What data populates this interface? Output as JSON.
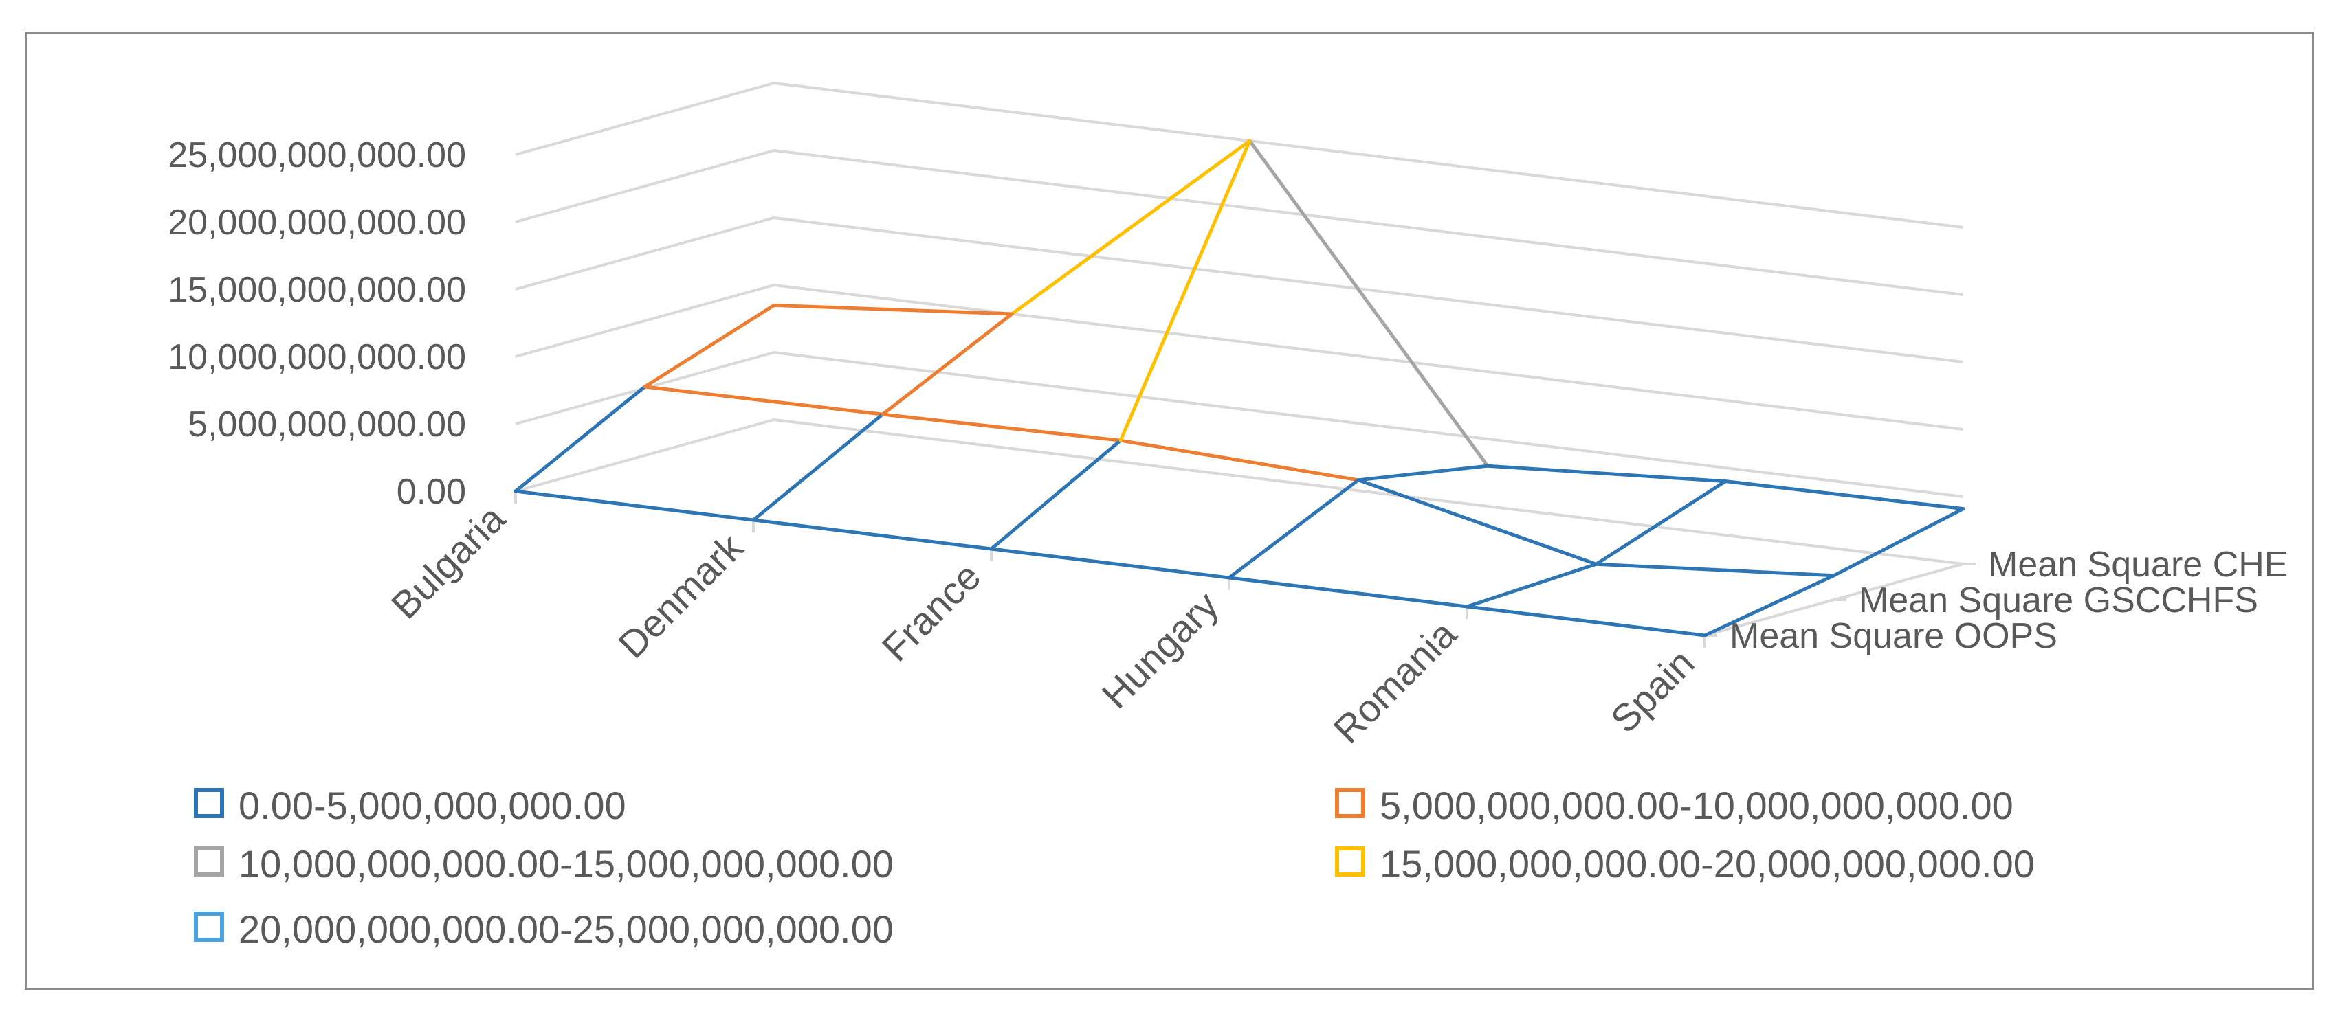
{
  "chart_data": {
    "type": "surface-wireframe-3d",
    "title": "",
    "categories": [
      "Bulgaria",
      "Denmark",
      "France",
      "Hungary",
      "Romania",
      "Spain"
    ],
    "series_axis": [
      "Mean Square OOPS",
      "Mean Square GSCCHFS",
      "Mean Square CHE"
    ],
    "series": [
      {
        "name": "Mean Square OOPS",
        "values": [
          0,
          0,
          0,
          0,
          0,
          0
        ]
      },
      {
        "name": "Mean Square GSCCHFS",
        "values": [
          5100000000,
          5200000000,
          5400000000,
          4600000000,
          500000000,
          1800000000
        ]
      },
      {
        "name": "Mean Square CHE",
        "values": [
          8500000000,
          10000000000,
          25000000000,
          3000000000,
          4000000000,
          4100000000
        ]
      }
    ],
    "y_ticks": [
      "0.00",
      "5,000,000,000.00",
      "10,000,000,000.00",
      "15,000,000,000.00",
      "20,000,000,000.00",
      "25,000,000,000.00"
    ],
    "ylim": [
      0,
      25000000000
    ],
    "legend": [
      {
        "label": "0.00-5,000,000,000.00",
        "color": "#2e75b6"
      },
      {
        "label": "5,000,000,000.00-10,000,000,000.00",
        "color": "#ed7d31"
      },
      {
        "label": "10,000,000,000.00-15,000,000,000.00",
        "color": "#a5a5a5"
      },
      {
        "label": "15,000,000,000.00-20,000,000,000.00",
        "color": "#ffc000"
      },
      {
        "label": "20,000,000,000.00-25,000,000,000.00",
        "color": "#4aa3df"
      }
    ],
    "legend_position": "bottom"
  }
}
